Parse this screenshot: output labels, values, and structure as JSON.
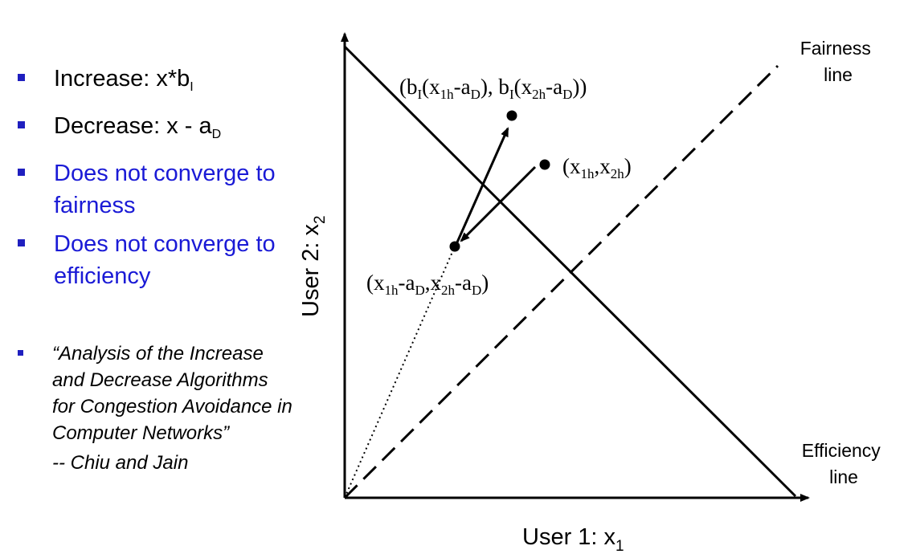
{
  "bullets": [
    {
      "prefix": "Increase: x*b",
      "sub": "I",
      "color": "#000000"
    },
    {
      "prefix": "Decrease: x - a",
      "sub": "D",
      "color": "#000000"
    },
    {
      "text": "Does not converge to fairness",
      "color": "#1a1ad6"
    },
    {
      "text": "Does not converge to efficiency",
      "color": "#1a1ad6"
    }
  ],
  "citation": {
    "quote": "“Analysis of the Increase and Decrease Algorithms for Congestion Avoidance in Computer Networks”",
    "author": "-- Chiu and Jain"
  },
  "diagram": {
    "fairness_label": [
      "Fairness",
      "line"
    ],
    "efficiency_label": [
      "Efficiency",
      "line"
    ],
    "x_axis": {
      "text": "User 1: x",
      "sub": "1"
    },
    "y_axis": {
      "text": "User 2: x",
      "sub": "2"
    },
    "points": {
      "start": {
        "label": "(x1h,x2h)"
      },
      "after_decrease": {
        "label": "(x1h-aD,x2h-aD)"
      },
      "after_increase": {
        "label": "(bI(x1h-aD), bI(x2h-aD))"
      }
    }
  }
}
